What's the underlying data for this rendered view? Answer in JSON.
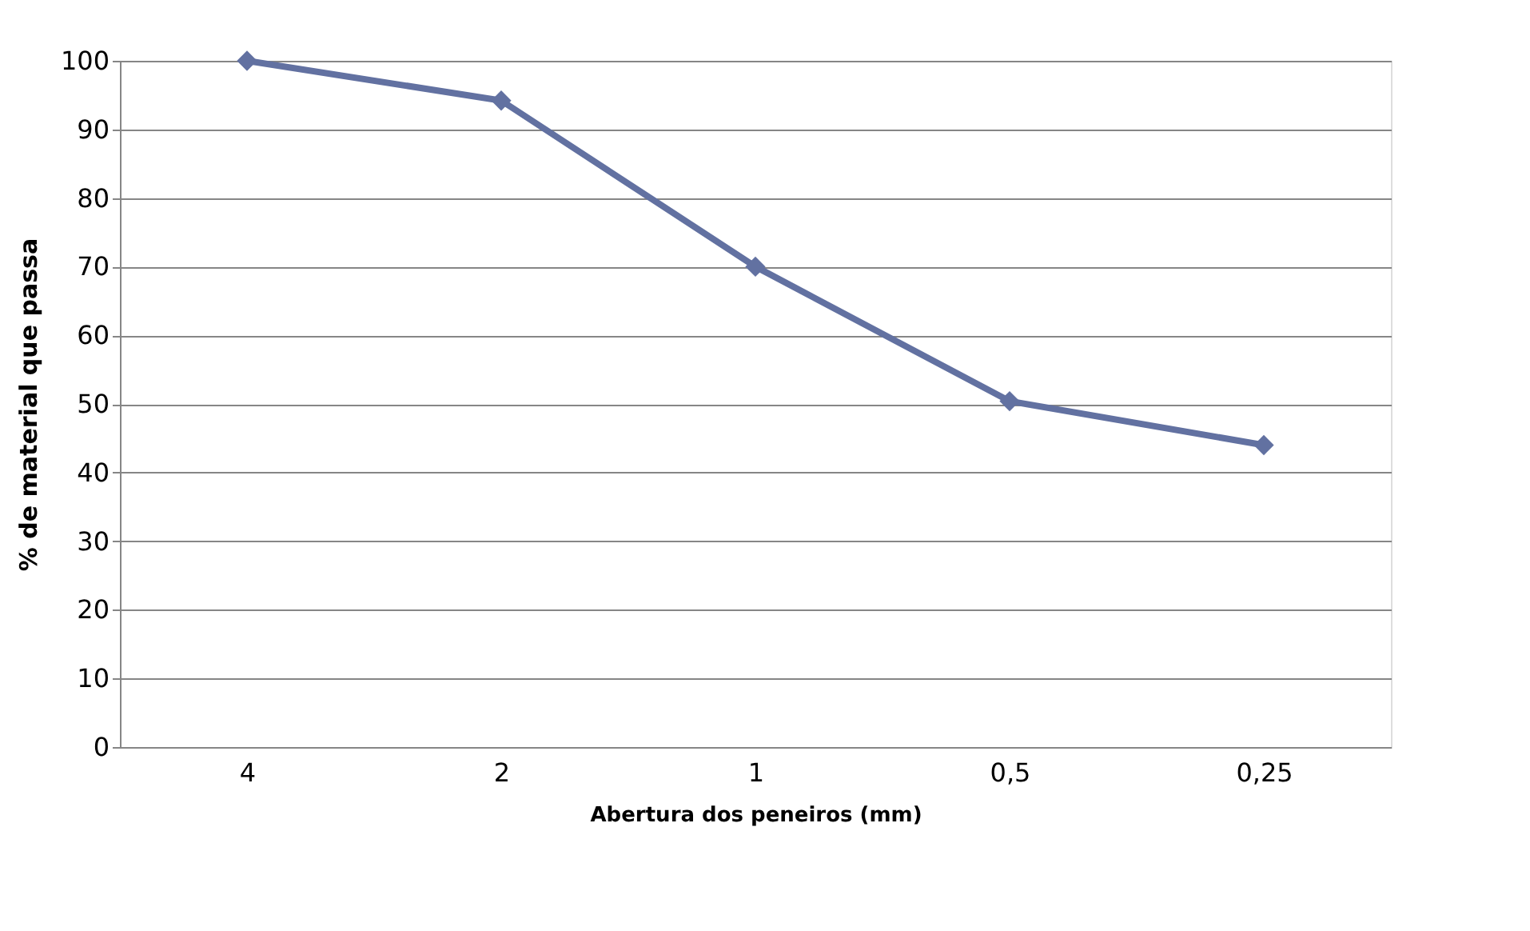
{
  "chart_data": {
    "type": "line",
    "xlabel": "Abertura dos peneiros (mm)",
    "ylabel": "% de material que passa",
    "categories": [
      "4",
      "2",
      "1",
      "0,5",
      "0,25"
    ],
    "series": [
      {
        "color": "#6271a1",
        "values": [
          100,
          94.2,
          70,
          50.4,
          44
        ]
      }
    ],
    "ylim": [
      0,
      100
    ],
    "yticks": [
      0,
      10,
      20,
      30,
      40,
      50,
      60,
      70,
      80,
      90,
      100
    ],
    "grid": "y",
    "marker": "diamond",
    "line_style": "solid"
  }
}
